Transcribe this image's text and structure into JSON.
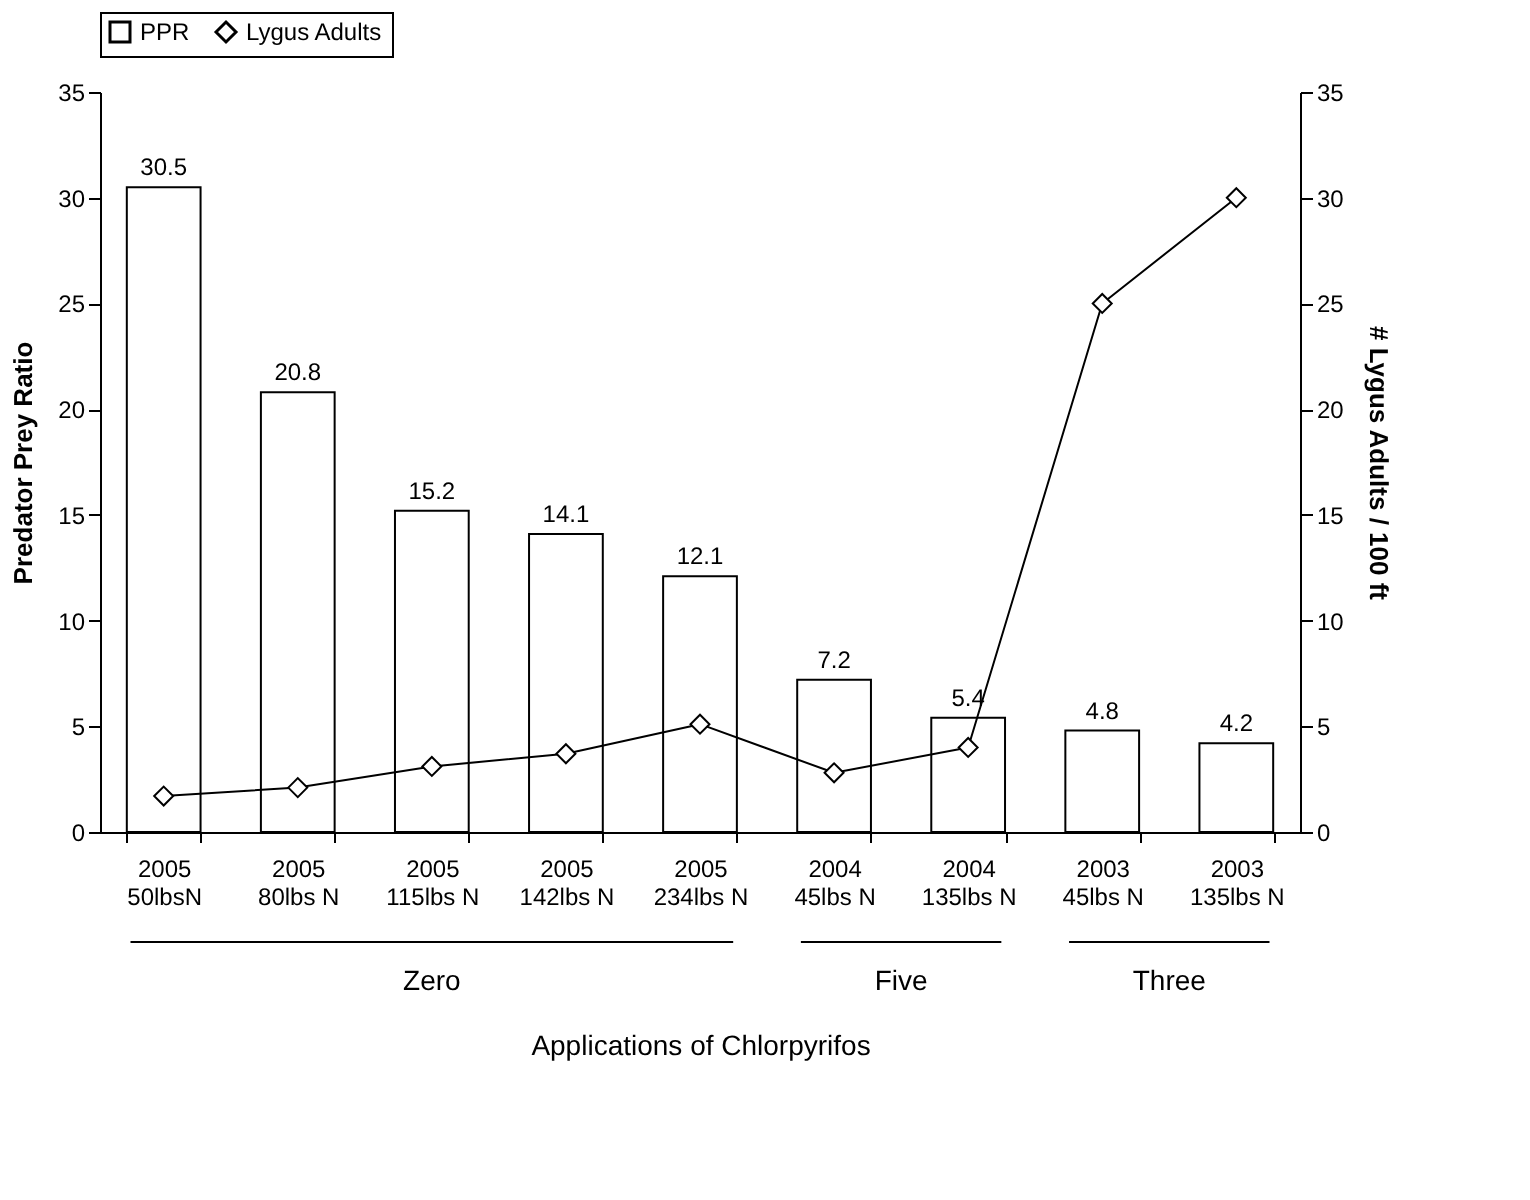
{
  "chart_data": {
    "type": "bar",
    "xlabel": "Applications of Chlorpyrifos",
    "ylabel": "Predator Prey Ratio",
    "y2label": "# Lygus Adults / 100 ft",
    "categories": [
      "2005\n50lbsN",
      "2005\n80lbs N",
      "2005\n115lbs N",
      "2005\n142lbs N",
      "2005\n234lbs N",
      "2004\n45lbs N",
      "2004\n135lbs N",
      "2003\n45lbs N",
      "2003\n135lbs N"
    ],
    "series": [
      {
        "name": "PPR",
        "color": "#ffffff",
        "values": [
          30.5,
          20.8,
          15.2,
          14.1,
          12.1,
          7.2,
          5.4,
          4.8,
          4.2
        ],
        "value_labels": [
          "30.5",
          "20.8",
          "15.2",
          "14.1",
          "12.1",
          "7.2",
          "5.4",
          "4.8",
          "4.2"
        ]
      },
      {
        "name": "Lygus Adults",
        "type": "line",
        "axis": "y2",
        "color": "#000000",
        "marker": "diamond",
        "values": [
          1.7,
          2.1,
          3.1,
          3.7,
          5.1,
          2.8,
          4.0,
          25,
          30
        ]
      }
    ],
    "ylim": [
      0,
      35
    ],
    "yticks": [
      0,
      5,
      10,
      15,
      20,
      25,
      30,
      35
    ],
    "y2lim": [
      0,
      35
    ],
    "y2ticks": [
      0,
      5,
      10,
      15,
      20,
      25,
      30,
      35
    ],
    "annotations": [
      "Zero",
      "Five",
      "Three"
    ],
    "grid": false,
    "legend": "top"
  }
}
